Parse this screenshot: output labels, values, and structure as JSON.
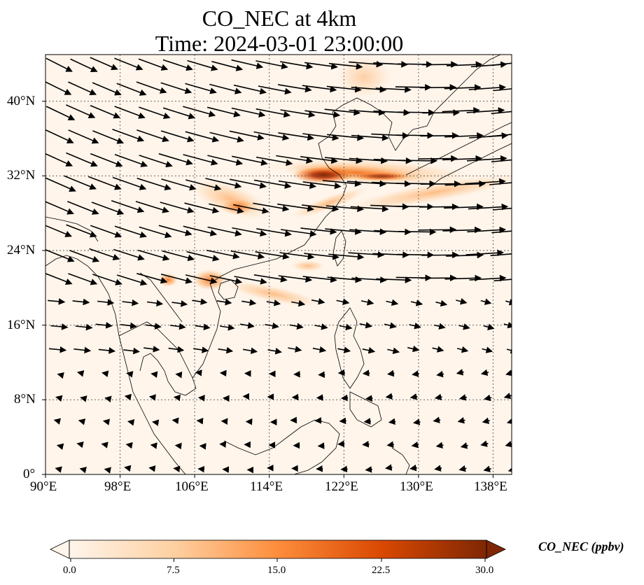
{
  "title": {
    "line1": "CO_NEC at 4km",
    "line2": "Time: 2024-03-01 23:00:00"
  },
  "axes": {
    "x_ticks": [
      "90°E",
      "98°E",
      "106°E",
      "114°E",
      "122°E",
      "130°E",
      "138°E"
    ],
    "y_ticks": [
      "40°N",
      "32°N",
      "24°N",
      "16°N",
      "8°N",
      "0°"
    ],
    "lon_range": [
      90,
      140
    ],
    "lat_range": [
      0,
      45
    ]
  },
  "colorbar": {
    "label": "CO_NEC (ppbv)",
    "ticks": [
      "0.0",
      "7.5",
      "15.0",
      "22.5",
      "30.0"
    ],
    "range": [
      0,
      30
    ],
    "colors": [
      "#fff5eb",
      "#fdd0a2",
      "#fd8d3c",
      "#d94801",
      "#7f2704"
    ]
  },
  "colors": {
    "background_field": "#fff5eb",
    "coastline": "#000000",
    "gridline": "#555555",
    "arrow": "#000000"
  }
}
